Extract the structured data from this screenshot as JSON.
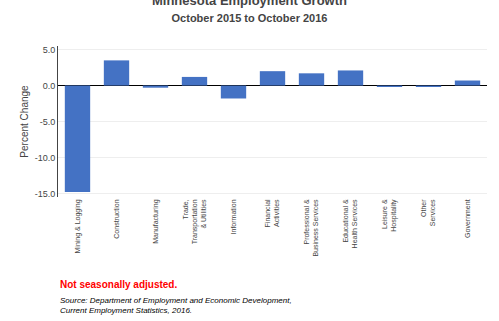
{
  "chart_data": {
    "type": "bar",
    "title": "Minnesota Employment Growth",
    "subtitle": "October 2015 to October 2016",
    "y_label": "Percent Change",
    "categories": [
      "Mining & Logging",
      "Construction",
      "Manufacturing",
      "Trade,\nTransportation\n& Utilities",
      "Information",
      "Financial\nActivities",
      "Professional &\nBusiness Services",
      "Educational &\nHealth Services",
      "Leisure &\nHospitality",
      "Other\nServices",
      "Government"
    ],
    "values": [
      -14.8,
      3.5,
      -0.3,
      1.2,
      -1.8,
      2.0,
      1.7,
      2.1,
      -0.2,
      -0.2,
      0.7
    ],
    "color": "#4472c4",
    "ylim": [
      -15.5,
      5.5
    ],
    "yticks": [
      {
        "value": -15.0,
        "label": "-15.0"
      },
      {
        "value": -10.0,
        "label": "-10.0"
      },
      {
        "value": -5.0,
        "label": "-5.0"
      },
      {
        "value": 0.0,
        "label": "0.0"
      },
      {
        "value": 5.0,
        "label": "5.0"
      }
    ],
    "grid": true,
    "annotations": [
      {
        "text": "Not seasonally adjusted.",
        "color": "#ff0000"
      },
      {
        "text": "Source: Department of Employment and Economic Development,\nCurrent Employment Statistics, 2016."
      }
    ]
  }
}
